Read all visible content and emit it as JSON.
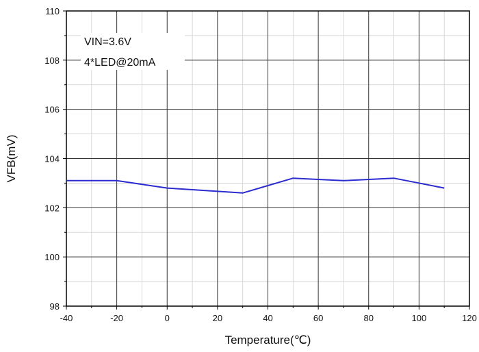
{
  "chart_data": {
    "type": "line",
    "xlabel": "Temperature(℃)",
    "ylabel": "VFB(mV)",
    "xlim": [
      -40,
      120
    ],
    "ylim": [
      98,
      110
    ],
    "x_ticks": [
      "-40",
      "-20",
      "0",
      "20",
      "40",
      "60",
      "80",
      "100",
      "120"
    ],
    "y_ticks": [
      "98",
      "100",
      "102",
      "104",
      "106",
      "108",
      "110"
    ],
    "grid": true,
    "annotations": [
      "VIN=3.6V",
      "4*LED@20mA"
    ],
    "series": [
      {
        "color": "#2b2bd0",
        "x": [
          -40,
          -20,
          0,
          30,
          50,
          70,
          90,
          110
        ],
        "y": [
          103.1,
          103.1,
          102.8,
          102.6,
          103.2,
          103.1,
          103.2,
          102.8
        ]
      }
    ]
  }
}
